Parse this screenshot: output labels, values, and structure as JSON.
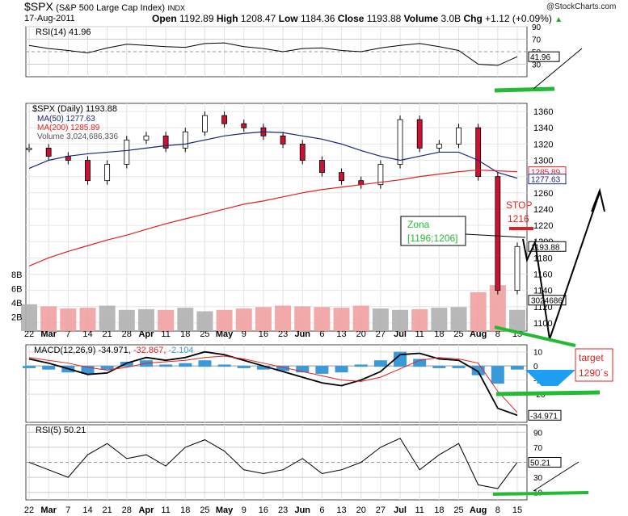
{
  "header": {
    "symbol": "$SPX",
    "name": "(S&P 500 Large Cap Index)",
    "exchange": "INDX",
    "date": "17-Aug-2011",
    "open_label": "Open",
    "open": "1192.89",
    "high_label": "High",
    "high": "1208.47",
    "low_label": "Low",
    "low": "1184.36",
    "close_label": "Close",
    "close": "1193.88",
    "volume_label": "Volume",
    "volume": "3.0B",
    "chg_label": "Chg",
    "chg": "+1.12 (+0.09%)",
    "brand": "@StockCharts.com"
  },
  "colors": {
    "up": "#ffffff",
    "down": "#cc1133",
    "ma50": "#1a237e",
    "ma200": "#e02020",
    "volume_up": "#b0b0b0",
    "volume_down": "#f0a0a0",
    "macd_hist": "#3a9ad9",
    "annotation_green": "#22bb33",
    "annotation_red": "#e02020"
  },
  "panels": {
    "rsi14": {
      "label": "RSI(14) 41.96",
      "value": "41.96",
      "ticks": [
        "90",
        "70",
        "50",
        "30"
      ]
    },
    "price": {
      "label": "$SPX (Daily) 1193.88",
      "ma50": "MA(50) 1277.63",
      "ma200": "MA(200) 1285.89",
      "volume": "Volume 3,024,686,336",
      "ticks": [
        "1360",
        "1340",
        "1320",
        "1300",
        "1280",
        "1260",
        "1240",
        "1220",
        "1200",
        "1180",
        "1160",
        "1140",
        "1120",
        "1100"
      ],
      "tag_close": "1193.88",
      "tag_ma200": "1285.89",
      "tag_ma50": "1277.63",
      "tag_vol": "3024686",
      "vol_ticks": [
        "8B",
        "6B",
        "4B",
        "2B"
      ]
    },
    "macd": {
      "label_main": "MACD(12,26,9) -34.971,",
      "label_sig": "-32.867,",
      "label_hist": "-2.104",
      "ticks": [
        "10",
        "0",
        "-10",
        "-20"
      ],
      "tag": "-34.971",
      "tag2": "-32.867"
    },
    "rsi5": {
      "label": "RSI(5) 50.21",
      "value": "50.21",
      "ticks": [
        "90",
        "70",
        "50",
        "30",
        "10"
      ]
    }
  },
  "xaxis": [
    "22",
    "Mar",
    "7",
    "14",
    "21",
    "28",
    "Apr",
    "11",
    "18",
    "25",
    "May",
    "9",
    "16",
    "23",
    "Jun",
    "6",
    "13",
    "20",
    "27",
    "Jul",
    "11",
    "18",
    "25",
    "Aug",
    "8",
    "15"
  ],
  "annotations": {
    "stop_label": "STOP",
    "stop_value": "1216",
    "zona_label": "Zona",
    "zona_range": "[1196;1206]",
    "target_label": "target",
    "target_value": "1290´s"
  },
  "chart_data": [
    {
      "type": "line",
      "title": "RSI(14) 41.96",
      "ylim": [
        10,
        90
      ],
      "series": [
        {
          "name": "RSI(14)",
          "values": [
            60,
            55,
            52,
            48,
            56,
            62,
            60,
            58,
            57,
            63,
            64,
            58,
            55,
            50,
            55,
            56,
            52,
            50,
            56,
            60,
            63,
            58,
            52,
            30,
            28,
            42
          ]
        }
      ]
    },
    {
      "type": "line",
      "title": "$SPX (Daily) 1193.88",
      "ylim": [
        1090,
        1370
      ],
      "x": [
        "22",
        "Mar",
        "7",
        "14",
        "21",
        "28",
        "Apr",
        "11",
        "18",
        "25",
        "May",
        "9",
        "16",
        "23",
        "Jun",
        "6",
        "13",
        "20",
        "27",
        "Jul",
        "11",
        "18",
        "25",
        "Aug",
        "8",
        "15"
      ],
      "series": [
        {
          "name": "$SPX",
          "values": [
            1315,
            1305,
            1300,
            1275,
            1295,
            1325,
            1330,
            1315,
            1335,
            1355,
            1345,
            1340,
            1330,
            1320,
            1300,
            1285,
            1275,
            1270,
            1295,
            1350,
            1315,
            1320,
            1340,
            1280,
            1140,
            1194
          ]
        },
        {
          "name": "MA(50)",
          "values": [
            1290,
            1300,
            1305,
            1308,
            1310,
            1312,
            1315,
            1318,
            1320,
            1325,
            1330,
            1333,
            1335,
            1334,
            1330,
            1326,
            1320,
            1312,
            1305,
            1300,
            1305,
            1310,
            1310,
            1300,
            1285,
            1278
          ]
        },
        {
          "name": "MA(200)",
          "values": [
            1170,
            1180,
            1188,
            1195,
            1202,
            1208,
            1215,
            1222,
            1228,
            1234,
            1240,
            1246,
            1250,
            1255,
            1260,
            1264,
            1267,
            1270,
            1273,
            1276,
            1280,
            1283,
            1286,
            1288,
            1287,
            1286
          ]
        }
      ]
    },
    {
      "type": "bar",
      "title": "Volume 3,024,686,336",
      "ylim": [
        0,
        8
      ],
      "categories": [
        "22",
        "Mar",
        "7",
        "14",
        "21",
        "28",
        "Apr",
        "11",
        "18",
        "25",
        "May",
        "9",
        "16",
        "23",
        "Jun",
        "6",
        "13",
        "20",
        "27",
        "Jul",
        "11",
        "18",
        "25",
        "Aug",
        "8",
        "15"
      ],
      "values": [
        3.8,
        3.5,
        3.2,
        3.3,
        3.6,
        3.0,
        3.1,
        3.0,
        3.3,
        2.8,
        3.0,
        3.2,
        3.4,
        3.6,
        3.5,
        3.4,
        3.3,
        3.6,
        3.2,
        3.0,
        3.1,
        3.3,
        3.4,
        5.5,
        6.5,
        3.0
      ]
    },
    {
      "type": "line",
      "title": "MACD(12,26,9) -34.971, -32.867, -2.104",
      "ylim": [
        -40,
        15
      ],
      "series": [
        {
          "name": "MACD",
          "values": [
            5,
            2,
            -2,
            -6,
            -5,
            2,
            6,
            4,
            6,
            10,
            8,
            4,
            0,
            -4,
            -8,
            -12,
            -14,
            -10,
            -4,
            8,
            9,
            5,
            4,
            -4,
            -30,
            -35
          ]
        },
        {
          "name": "Signal",
          "values": [
            6,
            4,
            2,
            -1,
            -3,
            -1,
            2,
            3,
            4,
            6,
            7,
            5,
            2,
            -1,
            -4,
            -7,
            -10,
            -11,
            -8,
            -2,
            4,
            6,
            5,
            2,
            -18,
            -33
          ]
        }
      ]
    },
    {
      "type": "line",
      "title": "RSI(5) 50.21",
      "ylim": [
        0,
        100
      ],
      "series": [
        {
          "name": "RSI(5)",
          "values": [
            50,
            40,
            30,
            60,
            75,
            55,
            60,
            45,
            70,
            80,
            65,
            40,
            35,
            40,
            55,
            35,
            40,
            50,
            70,
            82,
            40,
            60,
            75,
            20,
            15,
            50
          ]
        }
      ]
    }
  ]
}
